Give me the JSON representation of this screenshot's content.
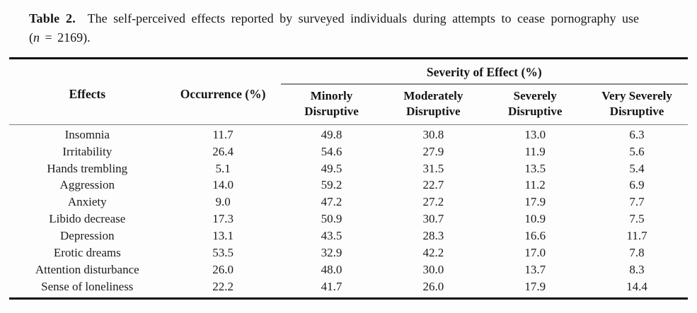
{
  "caption": {
    "label": "Table 2.",
    "text": "The self-perceived effects reported by surveyed individuals during attempts to cease pornography use (",
    "n_var": "n",
    "text_end": " = 2169)."
  },
  "table": {
    "headers": {
      "effects": "Effects",
      "occurrence": "Occurrence (%)",
      "severity_group": "Severity of Effect (%)",
      "severity_levels": [
        "Minorly Disruptive",
        "Moderately Disruptive",
        "Severely Disruptive",
        "Very Severely Disruptive"
      ]
    },
    "rows": [
      {
        "effect": "Insomnia",
        "occurrence": "11.7",
        "severity": [
          "49.8",
          "30.8",
          "13.0",
          "6.3"
        ]
      },
      {
        "effect": "Irritability",
        "occurrence": "26.4",
        "severity": [
          "54.6",
          "27.9",
          "11.9",
          "5.6"
        ]
      },
      {
        "effect": "Hands trembling",
        "occurrence": "5.1",
        "severity": [
          "49.5",
          "31.5",
          "13.5",
          "5.4"
        ]
      },
      {
        "effect": "Aggression",
        "occurrence": "14.0",
        "severity": [
          "59.2",
          "22.7",
          "11.2",
          "6.9"
        ]
      },
      {
        "effect": "Anxiety",
        "occurrence": "9.0",
        "severity": [
          "47.2",
          "27.2",
          "17.9",
          "7.7"
        ]
      },
      {
        "effect": "Libido decrease",
        "occurrence": "17.3",
        "severity": [
          "50.9",
          "30.7",
          "10.9",
          "7.5"
        ]
      },
      {
        "effect": "Depression",
        "occurrence": "13.1",
        "severity": [
          "43.5",
          "28.3",
          "16.6",
          "11.7"
        ]
      },
      {
        "effect": "Erotic dreams",
        "occurrence": "53.5",
        "severity": [
          "32.9",
          "42.2",
          "17.0",
          "7.8"
        ]
      },
      {
        "effect": "Attention disturbance",
        "occurrence": "26.0",
        "severity": [
          "48.0",
          "30.0",
          "13.7",
          "8.3"
        ]
      },
      {
        "effect": "Sense of loneliness",
        "occurrence": "22.2",
        "severity": [
          "41.7",
          "26.0",
          "17.9",
          "14.4"
        ]
      }
    ],
    "colors": {
      "thick_rule": "#0e0e0e",
      "thin_rule": "#7f7f7f",
      "text": "#1b1b1b"
    }
  }
}
